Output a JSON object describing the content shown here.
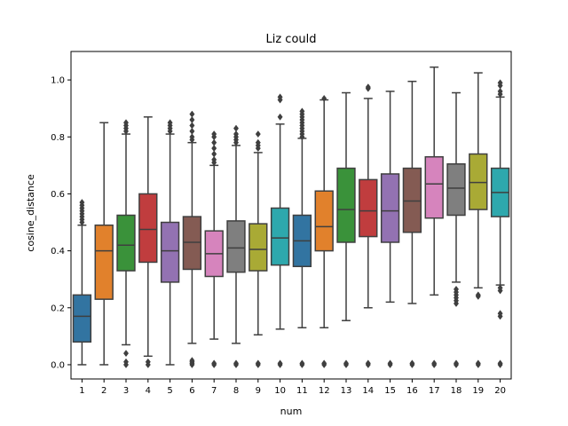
{
  "chart_data": {
    "type": "box",
    "title": "Liz could",
    "xlabel": "num",
    "ylabel": "cosine_distance",
    "ylim": [
      -0.05,
      1.1
    ],
    "yticks": [
      0.0,
      0.2,
      0.4,
      0.6,
      0.8,
      1.0
    ],
    "ytick_labels": [
      "0.0",
      "0.2",
      "0.4",
      "0.6",
      "0.8",
      "1.0"
    ],
    "categories": [
      "1",
      "2",
      "3",
      "4",
      "5",
      "6",
      "7",
      "8",
      "9",
      "10",
      "11",
      "12",
      "13",
      "14",
      "15",
      "16",
      "17",
      "18",
      "19",
      "20"
    ],
    "box_colors": [
      "#3274a1",
      "#e1812c",
      "#3a923a",
      "#c03d3e",
      "#9372b2",
      "#845b53",
      "#d684bd",
      "#7f7f7f",
      "#a9aa35",
      "#2ea8ad",
      "#3274a1",
      "#e1812c",
      "#3a923a",
      "#c03d3e",
      "#9372b2",
      "#845b53",
      "#d684bd",
      "#7f7f7f",
      "#a9aa35",
      "#2ea8ad"
    ],
    "boxes": [
      {
        "min": 0.0,
        "q1": 0.08,
        "median": 0.17,
        "q3": 0.245,
        "max": 0.49,
        "outliers": [
          0.5,
          0.51,
          0.52,
          0.53,
          0.54,
          0.55,
          0.56,
          0.57
        ]
      },
      {
        "min": 0.0,
        "q1": 0.23,
        "median": 0.4,
        "q3": 0.49,
        "max": 0.85,
        "outliers": []
      },
      {
        "min": 0.07,
        "q1": 0.33,
        "median": 0.42,
        "q3": 0.525,
        "max": 0.81,
        "outliers": [
          0.0,
          0.01,
          0.04,
          0.82,
          0.83,
          0.84,
          0.85
        ]
      },
      {
        "min": 0.03,
        "q1": 0.36,
        "median": 0.475,
        "q3": 0.6,
        "max": 0.87,
        "outliers": [
          0.0,
          0.01
        ]
      },
      {
        "min": 0.0,
        "q1": 0.29,
        "median": 0.4,
        "q3": 0.5,
        "max": 0.81,
        "outliers": [
          0.82,
          0.83,
          0.84,
          0.85
        ]
      },
      {
        "min": 0.075,
        "q1": 0.335,
        "median": 0.43,
        "q3": 0.52,
        "max": 0.78,
        "outliers": [
          0.0,
          0.005,
          0.01,
          0.015,
          0.79,
          0.8,
          0.82,
          0.84,
          0.86,
          0.88
        ]
      },
      {
        "min": 0.09,
        "q1": 0.31,
        "median": 0.39,
        "q3": 0.47,
        "max": 0.7,
        "outliers": [
          0.0,
          0.005,
          0.71,
          0.72,
          0.74,
          0.76,
          0.78,
          0.8,
          0.81
        ]
      },
      {
        "min": 0.075,
        "q1": 0.325,
        "median": 0.41,
        "q3": 0.505,
        "max": 0.77,
        "outliers": [
          0.0,
          0.005,
          0.78,
          0.79,
          0.8,
          0.81,
          0.83
        ]
      },
      {
        "min": 0.105,
        "q1": 0.33,
        "median": 0.405,
        "q3": 0.495,
        "max": 0.745,
        "outliers": [
          0.0,
          0.005,
          0.76,
          0.77,
          0.78,
          0.81
        ]
      },
      {
        "min": 0.125,
        "q1": 0.35,
        "median": 0.445,
        "q3": 0.55,
        "max": 0.845,
        "outliers": [
          0.0,
          0.005,
          0.87,
          0.93,
          0.94
        ]
      },
      {
        "min": 0.13,
        "q1": 0.345,
        "median": 0.435,
        "q3": 0.525,
        "max": 0.795,
        "outliers": [
          0.0,
          0.005,
          0.8,
          0.81,
          0.82,
          0.83,
          0.84,
          0.85,
          0.86,
          0.87,
          0.88,
          0.89
        ]
      },
      {
        "min": 0.13,
        "q1": 0.4,
        "median": 0.485,
        "q3": 0.61,
        "max": 0.93,
        "outliers": [
          0.0,
          0.005,
          0.935
        ]
      },
      {
        "min": 0.155,
        "q1": 0.43,
        "median": 0.545,
        "q3": 0.69,
        "max": 0.955,
        "outliers": [
          0.0,
          0.005
        ]
      },
      {
        "min": 0.2,
        "q1": 0.45,
        "median": 0.54,
        "q3": 0.65,
        "max": 0.935,
        "outliers": [
          0.0,
          0.005,
          0.97,
          0.975
        ]
      },
      {
        "min": 0.22,
        "q1": 0.43,
        "median": 0.54,
        "q3": 0.67,
        "max": 0.96,
        "outliers": [
          0.0,
          0.005
        ]
      },
      {
        "min": 0.215,
        "q1": 0.465,
        "median": 0.575,
        "q3": 0.69,
        "max": 0.995,
        "outliers": [
          0.0,
          0.005
        ]
      },
      {
        "min": 0.245,
        "q1": 0.515,
        "median": 0.635,
        "q3": 0.73,
        "max": 1.045,
        "outliers": [
          0.0,
          0.005
        ]
      },
      {
        "min": 0.29,
        "q1": 0.525,
        "median": 0.62,
        "q3": 0.705,
        "max": 0.955,
        "outliers": [
          0.0,
          0.005,
          0.215,
          0.225,
          0.235,
          0.245,
          0.255,
          0.265
        ]
      },
      {
        "min": 0.27,
        "q1": 0.545,
        "median": 0.64,
        "q3": 0.74,
        "max": 1.025,
        "outliers": [
          0.0,
          0.005,
          0.24,
          0.245
        ]
      },
      {
        "min": 0.28,
        "q1": 0.52,
        "median": 0.605,
        "q3": 0.69,
        "max": 0.94,
        "outliers": [
          0.0,
          0.005,
          0.17,
          0.18,
          0.26,
          0.27,
          0.95,
          0.96,
          0.98,
          0.99
        ]
      }
    ],
    "grid": false,
    "legend": "none"
  }
}
